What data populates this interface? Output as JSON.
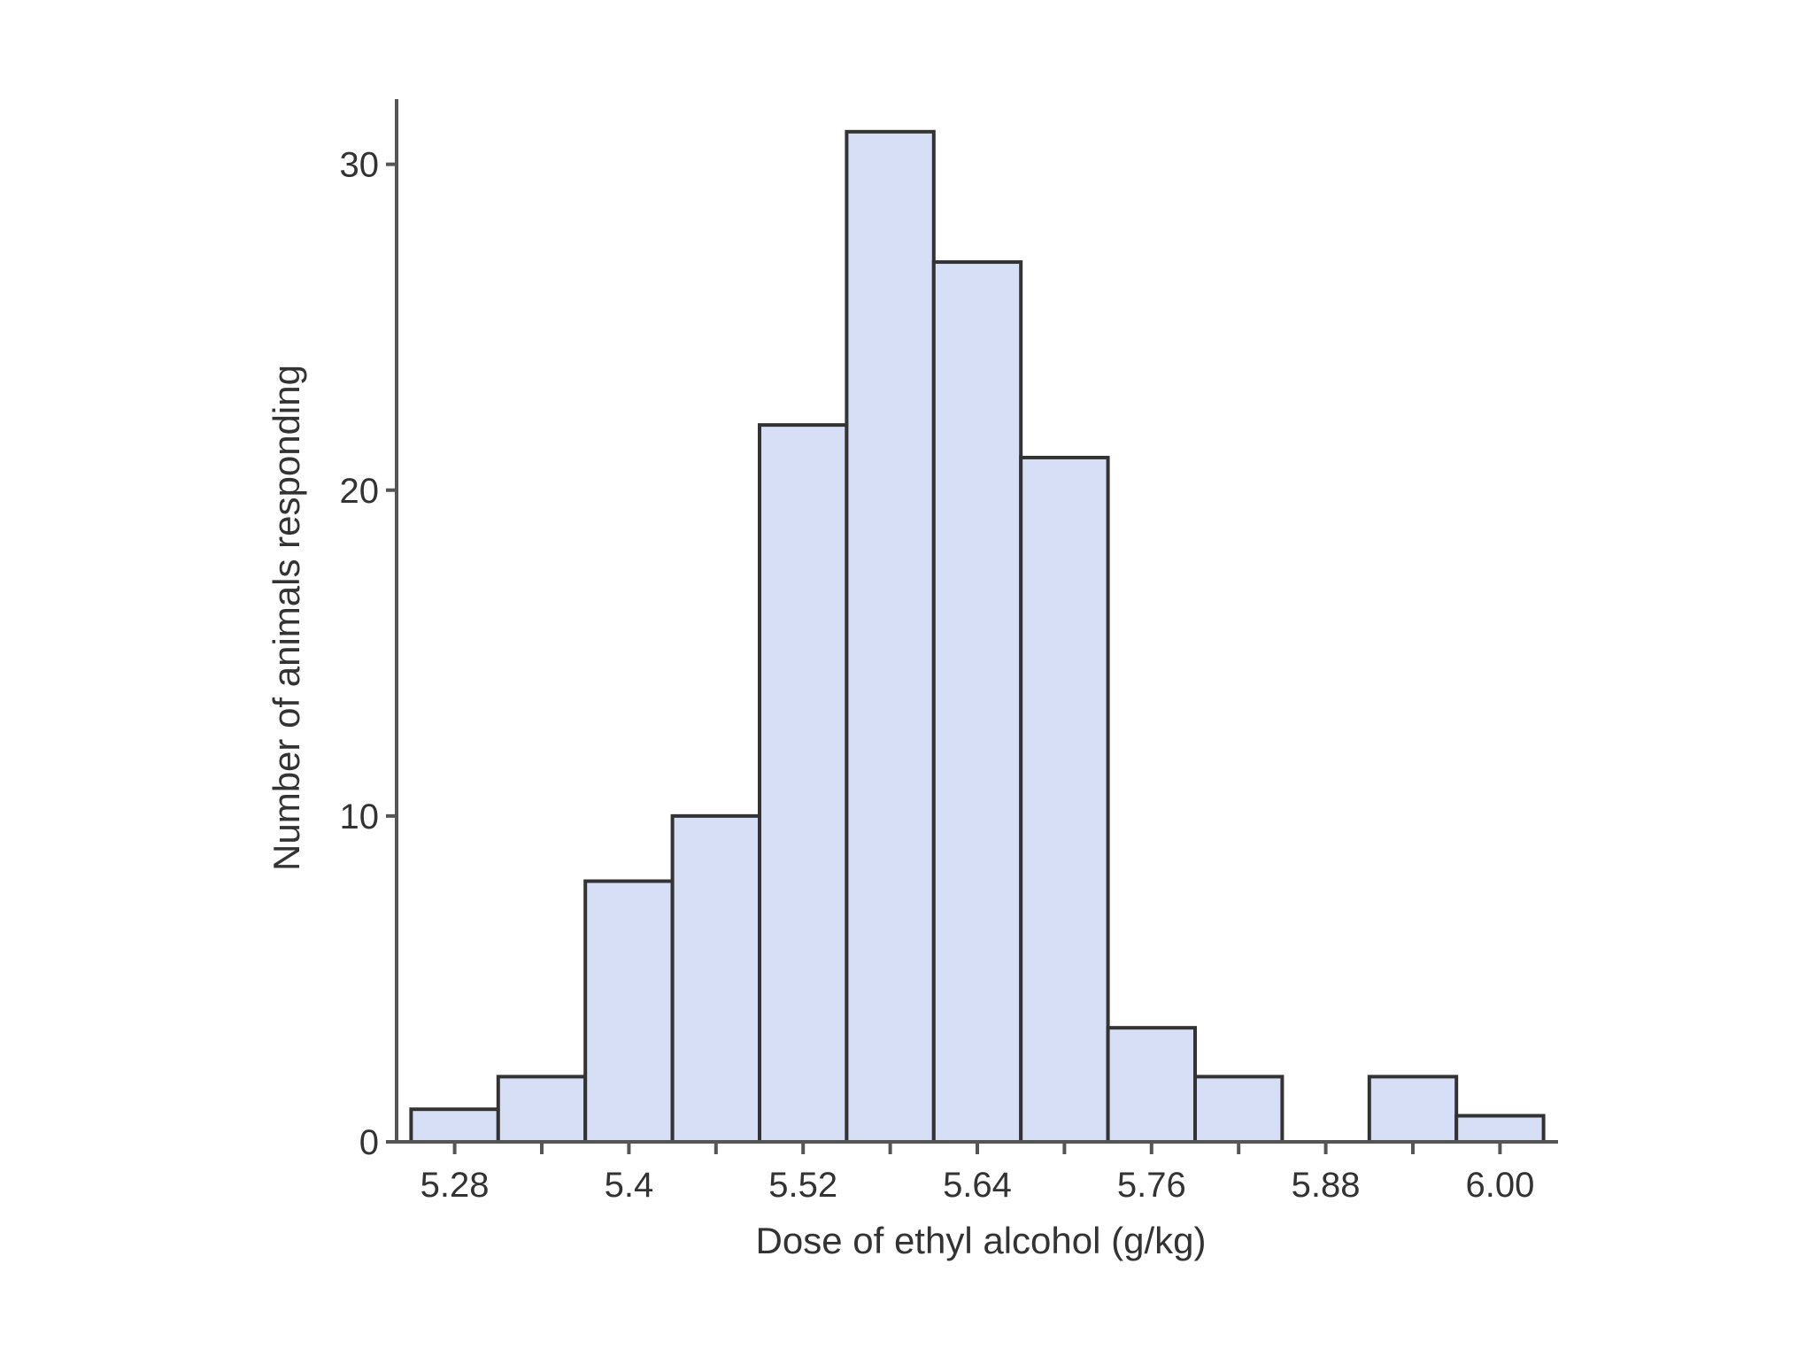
{
  "colors": {
    "bar_fill": "#d6dff5",
    "bar_stroke": "#333333",
    "axis": "#555555",
    "background": "#ffffff"
  },
  "chart_data": {
    "type": "bar",
    "title": "",
    "xlabel": "Dose of ethyl alcohol (g/kg)",
    "ylabel": "Number of animals responding",
    "grid": false,
    "legend": "none",
    "xlim": [
      5.24,
      6.04
    ],
    "ylim": [
      0,
      32
    ],
    "bin_width": 0.06,
    "bins": [
      {
        "x0": 5.25,
        "x1": 5.31,
        "value": 1
      },
      {
        "x0": 5.31,
        "x1": 5.37,
        "value": 2
      },
      {
        "x0": 5.37,
        "x1": 5.43,
        "value": 8
      },
      {
        "x0": 5.43,
        "x1": 5.49,
        "value": 10
      },
      {
        "x0": 5.49,
        "x1": 5.55,
        "value": 22
      },
      {
        "x0": 5.55,
        "x1": 5.61,
        "value": 31
      },
      {
        "x0": 5.61,
        "x1": 5.67,
        "value": 27
      },
      {
        "x0": 5.67,
        "x1": 5.73,
        "value": 21
      },
      {
        "x0": 5.73,
        "x1": 5.79,
        "value": 3.5
      },
      {
        "x0": 5.79,
        "x1": 5.85,
        "value": 2
      },
      {
        "x0": 5.85,
        "x1": 5.91,
        "value": 0
      },
      {
        "x0": 5.91,
        "x1": 5.97,
        "value": 2
      },
      {
        "x0": 5.97,
        "x1": 6.03,
        "value": 0.8
      }
    ],
    "x_ticks": [
      {
        "value": 5.28,
        "label": "5.28"
      },
      {
        "value": 5.4,
        "label": "5.4"
      },
      {
        "value": 5.52,
        "label": "5.52"
      },
      {
        "value": 5.64,
        "label": "5.64"
      },
      {
        "value": 5.76,
        "label": "5.76"
      },
      {
        "value": 5.88,
        "label": "5.88"
      },
      {
        "value": 6.0,
        "label": "6.00"
      }
    ],
    "x_minor_ticks": [
      5.34,
      5.46,
      5.58,
      5.7,
      5.82,
      5.94
    ],
    "y_ticks": [
      {
        "value": 0,
        "label": "0"
      },
      {
        "value": 10,
        "label": "10"
      },
      {
        "value": 20,
        "label": "20"
      },
      {
        "value": 30,
        "label": "30"
      }
    ]
  }
}
